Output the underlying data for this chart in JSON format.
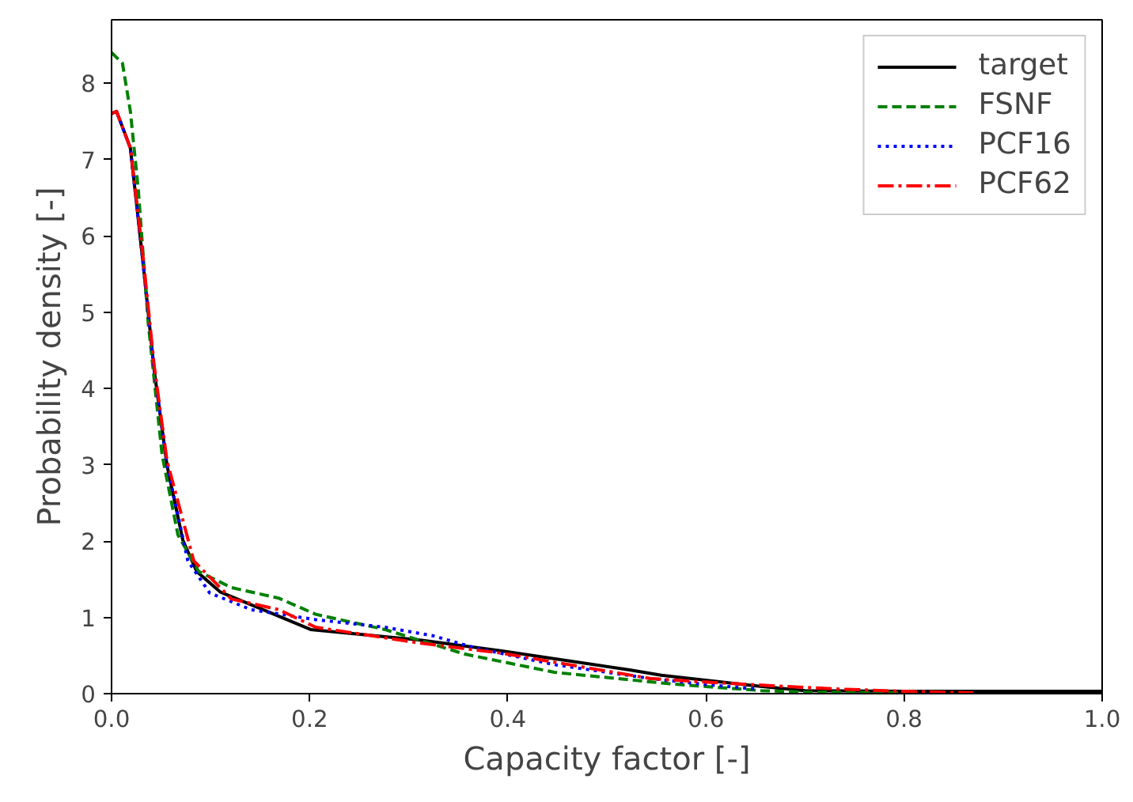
{
  "chart_data": {
    "type": "line",
    "xlabel": "Capacity factor [-]",
    "ylabel": "Probability density [-]",
    "xlim": [
      0,
      1
    ],
    "ylim": [
      0,
      8.83
    ],
    "xticks": [
      {
        "value": 0,
        "label": "0.0"
      },
      0.2,
      0.4,
      0.6,
      0.8,
      {
        "value": 1,
        "label": "1.0"
      }
    ],
    "yticks": [
      0,
      1,
      2,
      3,
      4,
      5,
      6,
      7,
      8
    ],
    "grid": false,
    "legend": "top right",
    "marker": "none",
    "series": [
      {
        "name": "target",
        "color": "#000000",
        "line_style": "solid",
        "x": [
          0,
          0.005,
          0.019,
          0.032,
          0.043,
          0.056,
          0.072,
          0.086,
          0.11,
          0.153,
          0.201,
          0.313,
          0.394,
          0.523,
          0.555,
          0.651,
          0.7,
          0.8,
          0.9,
          1.0
        ],
        "values": [
          7.6,
          7.63,
          7.15,
          5.62,
          4.24,
          2.99,
          2.01,
          1.6,
          1.33,
          1.1,
          0.84,
          0.7,
          0.56,
          0.31,
          0.24,
          0.1,
          0.04,
          0.03,
          0.03,
          0.03
        ]
      },
      {
        "name": "FSNF",
        "color": "#008000",
        "line_style": "dashed",
        "x": [
          0,
          0.011,
          0.019,
          0.027,
          0.037,
          0.051,
          0.067,
          0.088,
          0.121,
          0.169,
          0.206,
          0.276,
          0.356,
          0.447,
          0.555,
          0.592,
          0.656,
          0.7,
          0.8
        ],
        "values": [
          8.4,
          8.26,
          7.63,
          6.6,
          4.86,
          3.13,
          2.08,
          1.6,
          1.39,
          1.25,
          1.04,
          0.84,
          0.52,
          0.28,
          0.14,
          0.1,
          0.04,
          0.02,
          0.01
        ]
      },
      {
        "name": "PCF16",
        "color": "#0000ff",
        "line_style": "dotted",
        "x": [
          0,
          0.005,
          0.019,
          0.032,
          0.043,
          0.056,
          0.077,
          0.099,
          0.141,
          0.206,
          0.276,
          0.324,
          0.367,
          0.447,
          0.543,
          0.6,
          0.65
        ],
        "values": [
          7.6,
          7.63,
          7.15,
          5.62,
          4.24,
          2.99,
          1.74,
          1.32,
          1.1,
          0.97,
          0.87,
          0.76,
          0.6,
          0.38,
          0.2,
          0.12,
          0.06
        ]
      },
      {
        "name": "PCF62",
        "color": "#ff0000",
        "line_style": "dashdot",
        "x": [
          0,
          0.005,
          0.019,
          0.032,
          0.043,
          0.056,
          0.083,
          0.121,
          0.169,
          0.206,
          0.313,
          0.394,
          0.543,
          0.576,
          0.672,
          0.736,
          0.8,
          0.87
        ],
        "values": [
          7.6,
          7.63,
          7.15,
          5.7,
          4.3,
          3.05,
          1.74,
          1.24,
          1.1,
          0.87,
          0.66,
          0.53,
          0.2,
          0.17,
          0.1,
          0.06,
          0.03,
          0.01
        ]
      }
    ]
  }
}
